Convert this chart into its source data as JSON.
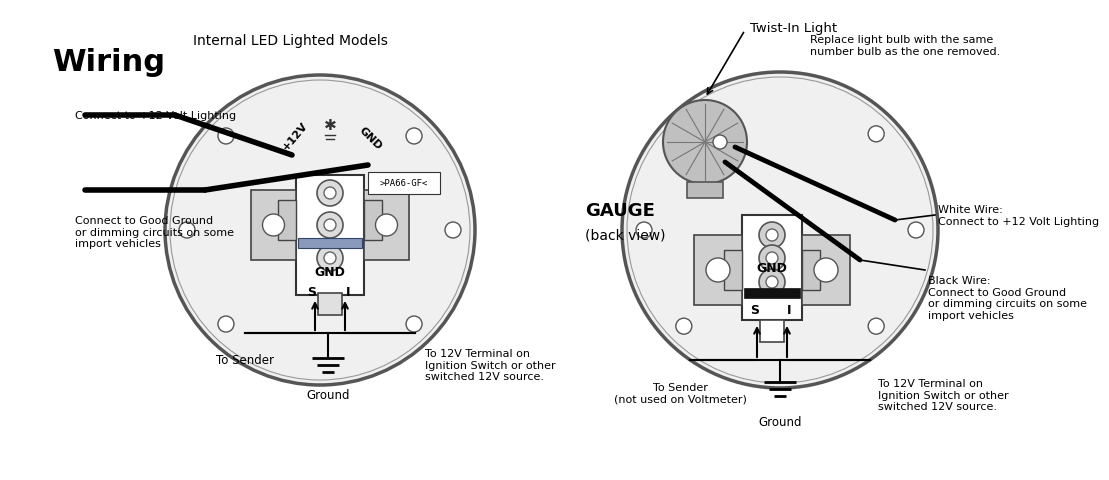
{
  "bg_color": "#ffffff",
  "title_left": "Wiring",
  "subtitle_left": "Internal LED Lighted Models",
  "title_right_line1": "GAUGE",
  "title_right_line2": "(back view)",
  "twist_in_light_label": "Twist-In Light",
  "replace_bulb_text": "Replace light bulb with the same\nnumber bulb as the one removed.",
  "white_wire_text": "White Wire:\nConnect to +12 Volt Lighting",
  "black_wire_text": "Black Wire:\nConnect to Good Ground\nor dimming circuits on some\nimport vehicles",
  "connect_12v_text": "Connect to +12 Volt Lighting",
  "connect_gnd_text": "Connect to Good Ground\nor dimming circuits on some\nimport vehicles",
  "to_sender_left": "To Sender",
  "ground_left": "Ground",
  "to_12v_left": "To 12V Terminal on\nIgnition Switch or other\nswitched 12V source.",
  "to_sender_right": "To Sender\n(not used on Voltmeter)",
  "ground_right": "Ground",
  "to_12v_right": "To 12V Terminal on\nIgnition Switch or other\nswitched 12V source.",
  "label_GND": "GND",
  "label_S": "S",
  "label_I": "I",
  "label_12V": "+12V",
  "label_GND_top": "GND",
  "part_label": ">PA66-GF<",
  "circle_edge": "#555555",
  "gauge_fill": "#f0f0f0",
  "conn_fill": "#cccccc",
  "flange_fill": "#bbbbbb",
  "bulb_fill": "#aaaaaa"
}
